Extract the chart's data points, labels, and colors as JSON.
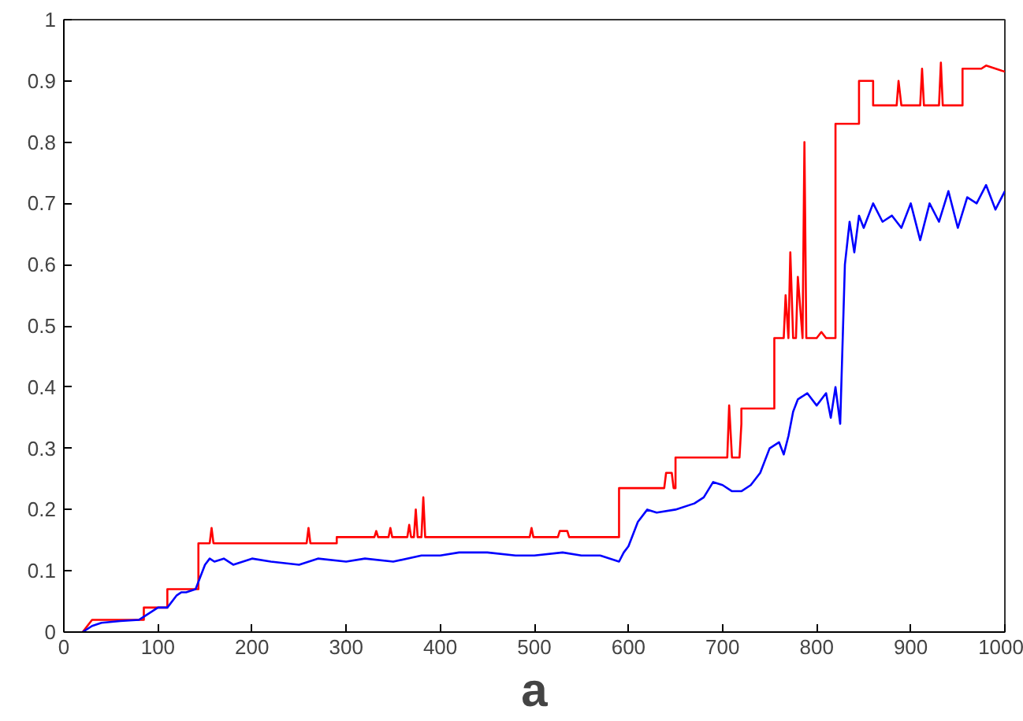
{
  "chart_data": {
    "type": "line",
    "xlabel": "a",
    "xlim": [
      0,
      1000
    ],
    "ylim": [
      0,
      1
    ],
    "xticks": [
      0,
      100,
      200,
      300,
      400,
      500,
      600,
      700,
      800,
      900,
      1000
    ],
    "yticks": [
      0,
      0.1,
      0.2,
      0.3,
      0.4,
      0.5,
      0.6,
      0.7,
      0.8,
      0.9,
      1
    ],
    "grid": false,
    "marker": "none",
    "line_style": "solid",
    "series": [
      {
        "color": "#ff0000",
        "x": [
          20,
          25,
          30,
          85,
          85,
          110,
          110,
          143,
          143,
          155,
          157,
          159,
          258,
          260,
          262,
          290,
          290,
          330,
          332,
          334,
          345,
          347,
          349,
          365,
          367,
          369,
          372,
          374,
          376,
          380,
          382,
          384,
          495,
          497,
          499,
          525,
          527,
          535,
          537,
          590,
          590,
          638,
          640,
          646,
          648,
          650,
          650,
          705,
          707,
          710,
          718,
          720,
          720,
          755,
          755,
          765,
          767,
          770,
          772,
          775,
          778,
          780,
          785,
          787,
          789,
          800,
          805,
          810,
          820,
          820,
          845,
          845,
          860,
          860,
          885,
          887,
          890,
          910,
          912,
          914,
          925,
          930,
          932,
          934,
          955,
          955,
          975,
          980,
          1000
        ],
        "values": [
          0,
          0.01,
          0.02,
          0.02,
          0.04,
          0.04,
          0.07,
          0.07,
          0.145,
          0.145,
          0.17,
          0.145,
          0.145,
          0.17,
          0.145,
          0.145,
          0.155,
          0.155,
          0.165,
          0.155,
          0.155,
          0.17,
          0.155,
          0.155,
          0.175,
          0.155,
          0.155,
          0.2,
          0.155,
          0.155,
          0.22,
          0.155,
          0.155,
          0.17,
          0.155,
          0.155,
          0.165,
          0.165,
          0.155,
          0.155,
          0.235,
          0.235,
          0.26,
          0.26,
          0.235,
          0.235,
          0.285,
          0.285,
          0.37,
          0.285,
          0.285,
          0.34,
          0.365,
          0.365,
          0.48,
          0.48,
          0.55,
          0.48,
          0.62,
          0.48,
          0.48,
          0.58,
          0.48,
          0.8,
          0.48,
          0.48,
          0.49,
          0.48,
          0.48,
          0.83,
          0.83,
          0.9,
          0.9,
          0.86,
          0.86,
          0.9,
          0.86,
          0.86,
          0.92,
          0.86,
          0.86,
          0.86,
          0.93,
          0.86,
          0.86,
          0.92,
          0.92,
          0.925,
          0.915
        ]
      },
      {
        "color": "#0000ff",
        "x": [
          20,
          30,
          40,
          60,
          80,
          90,
          100,
          110,
          120,
          125,
          130,
          140,
          145,
          150,
          155,
          160,
          170,
          180,
          200,
          220,
          250,
          270,
          300,
          320,
          350,
          380,
          400,
          420,
          450,
          480,
          500,
          530,
          550,
          570,
          590,
          595,
          600,
          610,
          620,
          630,
          650,
          670,
          680,
          690,
          700,
          710,
          720,
          730,
          740,
          750,
          760,
          765,
          770,
          775,
          780,
          790,
          800,
          810,
          815,
          820,
          825,
          830,
          835,
          840,
          845,
          850,
          860,
          870,
          880,
          890,
          900,
          910,
          920,
          930,
          940,
          950,
          960,
          970,
          980,
          990,
          1000
        ],
        "values": [
          0,
          0.01,
          0.015,
          0.018,
          0.02,
          0.03,
          0.04,
          0.04,
          0.06,
          0.065,
          0.065,
          0.07,
          0.09,
          0.11,
          0.12,
          0.115,
          0.12,
          0.11,
          0.12,
          0.115,
          0.11,
          0.12,
          0.115,
          0.12,
          0.115,
          0.125,
          0.125,
          0.13,
          0.13,
          0.125,
          0.125,
          0.13,
          0.125,
          0.125,
          0.115,
          0.13,
          0.14,
          0.18,
          0.2,
          0.195,
          0.2,
          0.21,
          0.22,
          0.245,
          0.24,
          0.23,
          0.23,
          0.24,
          0.26,
          0.3,
          0.31,
          0.29,
          0.32,
          0.36,
          0.38,
          0.39,
          0.37,
          0.39,
          0.35,
          0.4,
          0.34,
          0.6,
          0.67,
          0.62,
          0.68,
          0.66,
          0.7,
          0.67,
          0.68,
          0.66,
          0.7,
          0.64,
          0.7,
          0.67,
          0.72,
          0.66,
          0.71,
          0.7,
          0.73,
          0.69,
          0.72
        ]
      }
    ]
  }
}
